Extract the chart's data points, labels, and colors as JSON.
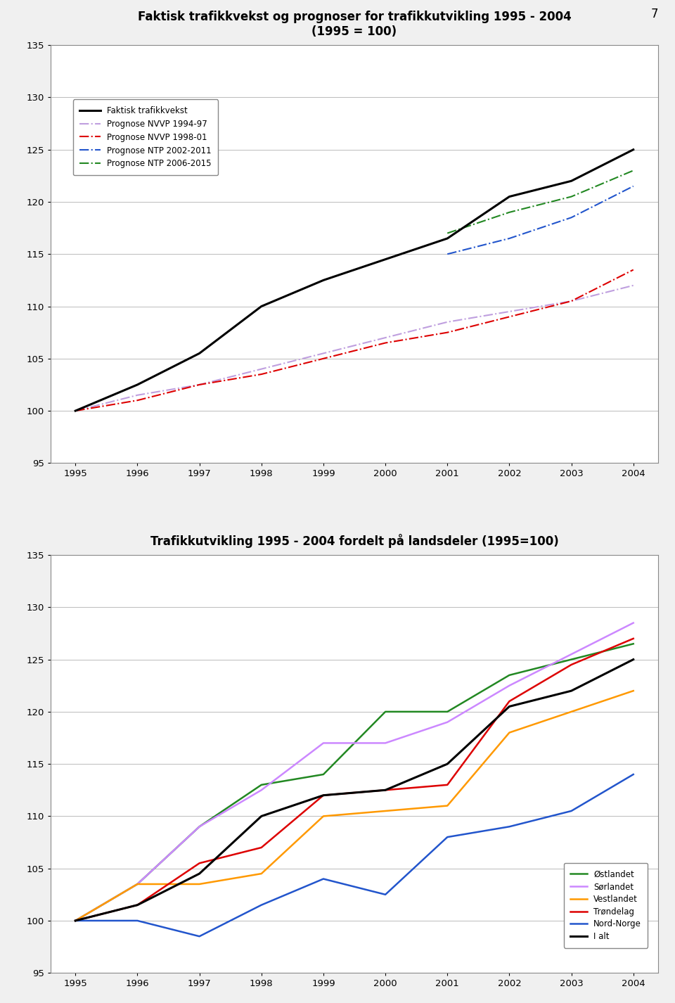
{
  "years": [
    1995,
    1996,
    1997,
    1998,
    1999,
    2000,
    2001,
    2002,
    2003,
    2004
  ],
  "chart1": {
    "title": "Faktisk trafikkvekst og prognoser for trafikkutvikling 1995 - 2004",
    "subtitle": "(1995 = 100)",
    "ylim": [
      95,
      135
    ],
    "yticks": [
      95,
      100,
      105,
      110,
      115,
      120,
      125,
      130,
      135
    ],
    "series": {
      "faktisk": {
        "label": "Faktisk trafikkvekst",
        "color": "#000000",
        "linestyle": "solid",
        "linewidth": 2.2,
        "values": [
          100,
          102.5,
          105.5,
          110.0,
          112.5,
          114.5,
          116.5,
          120.5,
          122.0,
          125.0
        ]
      },
      "nvvp9497": {
        "label": "Prognose NVVP 1994-97",
        "color": "#bf9fdf",
        "linestyle": "dashdot",
        "linewidth": 1.5,
        "values": [
          100,
          101.5,
          102.5,
          104.0,
          105.5,
          107.0,
          108.5,
          109.5,
          110.5,
          112.0
        ]
      },
      "nvvp9801": {
        "label": "Prognose NVVP 1998-01",
        "color": "#dd0000",
        "linestyle": "dashdot",
        "linewidth": 1.5,
        "values": [
          100,
          101.0,
          102.5,
          103.5,
          105.0,
          106.5,
          107.5,
          109.0,
          110.5,
          113.5
        ]
      },
      "ntp20022011": {
        "label": "Prognose NTP 2002-2011",
        "color": "#2255cc",
        "linestyle": "dashdot",
        "linewidth": 1.5,
        "values": [
          null,
          null,
          null,
          null,
          null,
          null,
          115.0,
          116.5,
          118.5,
          121.5
        ]
      },
      "ntp20062015": {
        "label": "Prognose NTP 2006-2015",
        "color": "#228822",
        "linestyle": "dashdot",
        "linewidth": 1.5,
        "values": [
          null,
          null,
          null,
          null,
          null,
          null,
          117.0,
          119.0,
          120.5,
          123.0
        ]
      }
    }
  },
  "chart2": {
    "title": "Trafikkutvikling 1995 - 2004 fordelt på landsdeler (1995=100)",
    "ylim": [
      95,
      135
    ],
    "yticks": [
      95,
      100,
      105,
      110,
      115,
      120,
      125,
      130,
      135
    ],
    "series": {
      "ostlandet": {
        "label": "Østlandet",
        "color": "#228822",
        "linestyle": "solid",
        "linewidth": 1.8,
        "values": [
          100,
          103.5,
          109.0,
          113.0,
          114.0,
          120.0,
          120.0,
          123.5,
          125.0,
          126.5
        ]
      },
      "sorlandet": {
        "label": "Sørlandet",
        "color": "#cc88ff",
        "linestyle": "solid",
        "linewidth": 1.8,
        "values": [
          100,
          103.5,
          109.0,
          112.5,
          117.0,
          117.0,
          119.0,
          122.5,
          125.5,
          128.5
        ]
      },
      "vestlandet": {
        "label": "Vestlandet",
        "color": "#ff9900",
        "linestyle": "solid",
        "linewidth": 1.8,
        "values": [
          100,
          103.5,
          103.5,
          104.5,
          110.0,
          110.5,
          111.0,
          118.0,
          120.0,
          122.0
        ]
      },
      "trondelag": {
        "label": "Trøndelag",
        "color": "#dd0000",
        "linestyle": "solid",
        "linewidth": 1.8,
        "values": [
          100,
          101.5,
          105.5,
          107.0,
          112.0,
          112.5,
          113.0,
          121.0,
          124.5,
          127.0
        ]
      },
      "nordnorge": {
        "label": "Nord-Norge",
        "color": "#2255cc",
        "linestyle": "solid",
        "linewidth": 1.8,
        "values": [
          100,
          100.0,
          98.5,
          101.5,
          104.0,
          102.5,
          108.0,
          109.0,
          110.5,
          114.0
        ]
      },
      "ialt": {
        "label": "I alt",
        "color": "#000000",
        "linestyle": "solid",
        "linewidth": 2.2,
        "values": [
          100,
          101.5,
          104.5,
          110.0,
          112.0,
          112.5,
          115.0,
          120.5,
          122.0,
          125.0
        ]
      }
    }
  },
  "background_color": "#f0f0f0",
  "chart_bg": "#ffffff",
  "page_number": "7"
}
